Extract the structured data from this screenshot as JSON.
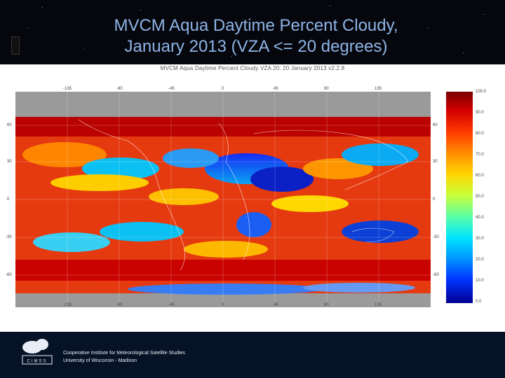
{
  "slide": {
    "title_line1": "MVCM Aqua Daytime Percent Cloudy,",
    "title_line2": "January 2013 (VZA <= 20 degrees)"
  },
  "plot": {
    "title": "MVCM Aqua Daytime Percent Cloudy VZA 20: 20 January 2013 v2.2.8",
    "lat_labels_left": [
      "60",
      "30",
      "0",
      "-30",
      "-60"
    ],
    "lat_labels_right": [
      "60",
      "30",
      "0",
      "-30",
      "-60"
    ],
    "lon_labels_top": [
      "-135",
      "-90",
      "-45",
      "0",
      "45",
      "90",
      "135"
    ],
    "lon_labels_bottom": [
      "-135",
      "-90",
      "-45",
      "0",
      "45",
      "90",
      "135"
    ],
    "colorbar_ticks": [
      "100.0",
      "90.0",
      "80.0",
      "70.0",
      "60.0",
      "50.0",
      "40.0",
      "30.0",
      "20.0",
      "10.0",
      "0.0"
    ],
    "colorbar_range": [
      0,
      100
    ],
    "colors": {
      "high": "#c80000",
      "mid": "#ffd500",
      "low": "#0000b0",
      "no_data": "#999999"
    }
  },
  "footer": {
    "logo_text": "CIMSS",
    "line1": "Cooperative Institute for Meteorological Satellite Studies",
    "line2": "University of Wisconsin - Madison"
  }
}
